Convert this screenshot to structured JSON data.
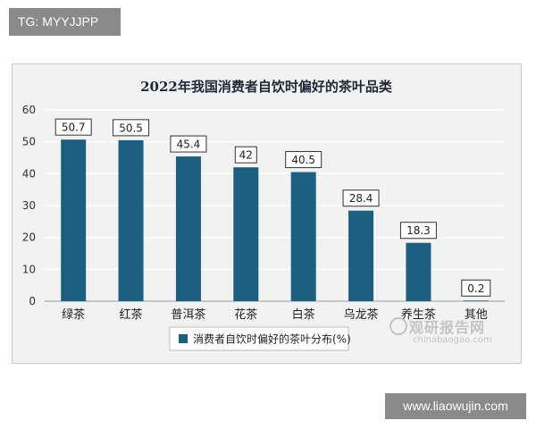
{
  "tags": {
    "top": "TG: MYYJJPP",
    "bottom": "www.liaowujin.com"
  },
  "watermark": {
    "cn": "观研报告网",
    "en": "chinabaogao.com"
  },
  "colors": {
    "bar": "#1c5f80",
    "plot_bg": "#f2f2f2",
    "grid": "#ffffff"
  },
  "chart_data": {
    "type": "bar",
    "title": "2022年我国消费者自饮时偏好的茶叶品类",
    "categories": [
      "绿茶",
      "红茶",
      "普洱茶",
      "花茶",
      "白茶",
      "乌龙茶",
      "养生茶",
      "其他"
    ],
    "series": [
      {
        "name": "消费者自饮时偏好的茶叶分布(%)",
        "values": [
          50.7,
          50.5,
          45.4,
          42,
          40.5,
          28.4,
          18.3,
          0.2
        ]
      }
    ],
    "data_labels": [
      "50.7",
      "50.5",
      "45.4",
      "42",
      "40.5",
      "28.4",
      "18.3",
      "0.2"
    ],
    "y_ticks": [
      "0",
      "10",
      "20",
      "30",
      "40",
      "50",
      "60"
    ],
    "ylim": [
      0,
      60
    ],
    "grid": true,
    "legend_position": "bottom"
  }
}
